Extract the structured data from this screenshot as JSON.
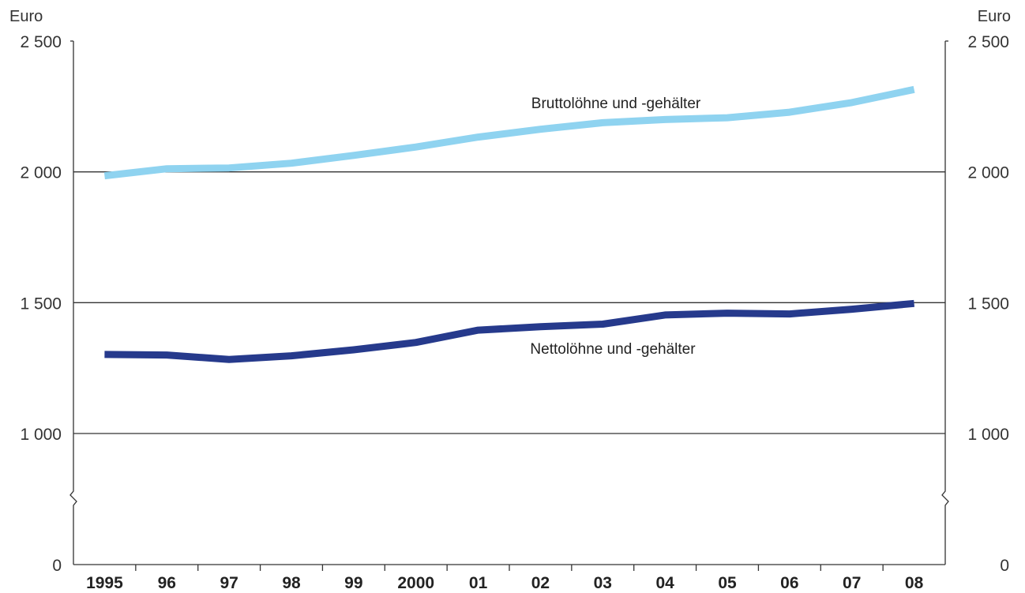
{
  "chart_data": {
    "type": "line",
    "y_unit_left": "Euro",
    "y_unit_right": "Euro",
    "y_ticks": [
      {
        "value": 0,
        "label": "0"
      },
      {
        "value": 1000,
        "label": "1 000"
      },
      {
        "value": 1500,
        "label": "1 500"
      },
      {
        "value": 2000,
        "label": "2 000"
      },
      {
        "value": 2500,
        "label": "2 500"
      }
    ],
    "y_axis_break": true,
    "ylim": [
      0,
      2500
    ],
    "categories": [
      "1995",
      "96",
      "97",
      "98",
      "99",
      "2000",
      "01",
      "02",
      "03",
      "04",
      "05",
      "06",
      "07",
      "08"
    ],
    "grid": "horizontal at 1 000, 1 500, 2 000",
    "series": [
      {
        "name": "Bruttolöhne und -gehälter",
        "color": "#8fd3f0",
        "values": [
          1985,
          2012,
          2015,
          2033,
          2063,
          2095,
          2133,
          2163,
          2188,
          2200,
          2207,
          2228,
          2265,
          2315
        ]
      },
      {
        "name": "Nettolöhne und -gehälter",
        "color": "#263a8c",
        "values": [
          1302,
          1300,
          1283,
          1297,
          1320,
          1348,
          1395,
          1408,
          1418,
          1453,
          1460,
          1457,
          1475,
          1497
        ]
      }
    ]
  }
}
